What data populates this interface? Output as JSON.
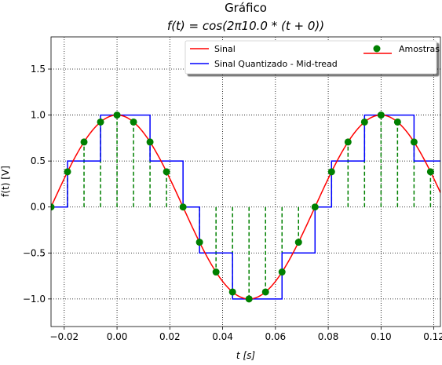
{
  "chart_data": {
    "type": "line",
    "title": "Gráfico",
    "subtitle": "f(t) = cos(2π10.0 * (t + 0))",
    "xlabel": "t [s]",
    "ylabel": "f(t) [V]",
    "xlim": [
      -0.025,
      0.1225
    ],
    "ylim": [
      -1.3,
      1.85
    ],
    "xticks": [
      -0.02,
      0.0,
      0.02,
      0.04,
      0.06,
      0.08,
      0.1,
      0.12
    ],
    "xtick_labels": [
      "−0.02",
      "0.00",
      "0.02",
      "0.04",
      "0.06",
      "0.08",
      "0.10",
      "0.12"
    ],
    "yticks": [
      -1.0,
      -0.5,
      0.0,
      0.5,
      1.0,
      1.5
    ],
    "ytick_labels": [
      "−1.0",
      "−0.5",
      "0.0",
      "0.5",
      "1.0",
      "1.5"
    ],
    "grid": true,
    "legend_position": "top-right",
    "frequency_hz": 10.0,
    "sample_period_s": 0.00625,
    "series": [
      {
        "name": "Sinal",
        "kind": "continuous",
        "color": "#ff0000"
      },
      {
        "name": "Sinal Quantizado - Mid-tread",
        "kind": "step",
        "color": "#0000ff",
        "levels": [
          -1.0,
          -0.5,
          0.0,
          0.5,
          1.0
        ]
      },
      {
        "name": "Amostras",
        "kind": "stem",
        "color": "#008000",
        "x": [
          -0.025,
          -0.01875,
          -0.0125,
          -0.00625,
          0.0,
          0.00625,
          0.0125,
          0.01875,
          0.025,
          0.03125,
          0.0375,
          0.04375,
          0.05,
          0.05625,
          0.0625,
          0.06875,
          0.075,
          0.08125,
          0.0875,
          0.09375,
          0.1,
          0.10625,
          0.1125,
          0.11875
        ],
        "y": [
          0.0,
          0.383,
          0.707,
          0.924,
          1.0,
          0.924,
          0.707,
          0.383,
          0.0,
          -0.383,
          -0.707,
          -0.924,
          -1.0,
          -0.924,
          -0.707,
          -0.383,
          0.0,
          0.383,
          0.707,
          0.924,
          1.0,
          0.924,
          0.707,
          0.383
        ]
      }
    ]
  }
}
